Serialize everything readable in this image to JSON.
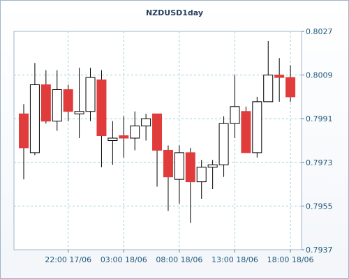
{
  "chart_data": {
    "type": "candlestick",
    "title": "NZDUSD1day",
    "y_axis": {
      "min": 0.7937,
      "max": 0.8027,
      "tick_values": [
        0.8027,
        0.8009,
        0.7991,
        0.7973,
        0.7955,
        0.7937
      ],
      "tick_labels": [
        "0.8027",
        "0.8009",
        "0.7991",
        "0.7973",
        "0.7955",
        "0.7937"
      ],
      "position": "right"
    },
    "x_axis": {
      "tick_labels": [
        "22:00 17/06",
        "03:00 18/06",
        "08:00 18/06",
        "13:00 18/06",
        "18:00 18/06"
      ],
      "tick_candle_index": [
        4,
        9,
        14,
        19,
        24
      ]
    },
    "grid": true,
    "colors": {
      "up_fill": "#ffffff",
      "down_fill": "#e03c3c",
      "outline": "#000000",
      "grid": "#9fd0d8",
      "frame": "#9fb4cc"
    },
    "candles": [
      {
        "open": 0.7993,
        "high": 0.7997,
        "low": 0.7966,
        "close": 0.7979,
        "direction": "down"
      },
      {
        "open": 0.7977,
        "high": 0.8014,
        "low": 0.7976,
        "close": 0.8005,
        "direction": "up"
      },
      {
        "open": 0.8005,
        "high": 0.8011,
        "low": 0.7989,
        "close": 0.799,
        "direction": "down"
      },
      {
        "open": 0.799,
        "high": 0.8011,
        "low": 0.7986,
        "close": 0.8003,
        "direction": "up"
      },
      {
        "open": 0.8003,
        "high": 0.8005,
        "low": 0.799,
        "close": 0.7994,
        "direction": "down"
      },
      {
        "open": 0.7993,
        "high": 0.8012,
        "low": 0.7983,
        "close": 0.7994,
        "direction": "up"
      },
      {
        "open": 0.7994,
        "high": 0.8012,
        "low": 0.799,
        "close": 0.8008,
        "direction": "up"
      },
      {
        "open": 0.8007,
        "high": 0.8011,
        "low": 0.7971,
        "close": 0.7984,
        "direction": "down"
      },
      {
        "open": 0.7982,
        "high": 0.799,
        "low": 0.7972,
        "close": 0.7983,
        "direction": "up"
      },
      {
        "open": 0.7984,
        "high": 0.7992,
        "low": 0.7975,
        "close": 0.7983,
        "direction": "down"
      },
      {
        "open": 0.7983,
        "high": 0.7994,
        "low": 0.7978,
        "close": 0.7988,
        "direction": "up"
      },
      {
        "open": 0.7988,
        "high": 0.7993,
        "low": 0.7982,
        "close": 0.7991,
        "direction": "up"
      },
      {
        "open": 0.7993,
        "high": 0.7993,
        "low": 0.7963,
        "close": 0.7978,
        "direction": "down"
      },
      {
        "open": 0.7978,
        "high": 0.798,
        "low": 0.7953,
        "close": 0.7967,
        "direction": "down"
      },
      {
        "open": 0.7966,
        "high": 0.798,
        "low": 0.7956,
        "close": 0.7977,
        "direction": "up"
      },
      {
        "open": 0.7977,
        "high": 0.7979,
        "low": 0.7948,
        "close": 0.7965,
        "direction": "down"
      },
      {
        "open": 0.7965,
        "high": 0.7974,
        "low": 0.7958,
        "close": 0.7971,
        "direction": "up"
      },
      {
        "open": 0.7971,
        "high": 0.7974,
        "low": 0.7962,
        "close": 0.7972,
        "direction": "up"
      },
      {
        "open": 0.7972,
        "high": 0.7992,
        "low": 0.7967,
        "close": 0.7989,
        "direction": "up"
      },
      {
        "open": 0.7989,
        "high": 0.8009,
        "low": 0.7983,
        "close": 0.7996,
        "direction": "up"
      },
      {
        "open": 0.7994,
        "high": 0.7996,
        "low": 0.7977,
        "close": 0.7977,
        "direction": "down"
      },
      {
        "open": 0.7977,
        "high": 0.8,
        "low": 0.7975,
        "close": 0.7998,
        "direction": "up"
      },
      {
        "open": 0.7998,
        "high": 0.8023,
        "low": 0.7998,
        "close": 0.8009,
        "direction": "up"
      },
      {
        "open": 0.8009,
        "high": 0.8016,
        "low": 0.7998,
        "close": 0.8008,
        "direction": "down"
      },
      {
        "open": 0.8008,
        "high": 0.8013,
        "low": 0.7998,
        "close": 0.8,
        "direction": "down"
      }
    ]
  }
}
